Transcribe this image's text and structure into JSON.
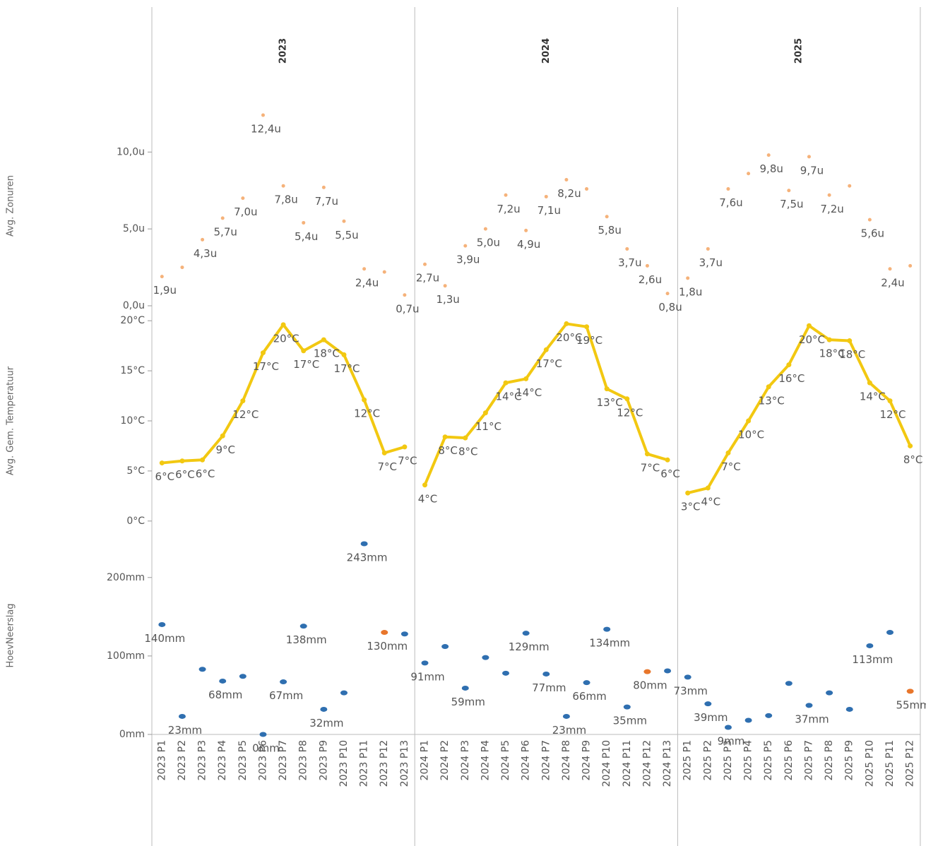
{
  "chart_data": {
    "type": "panels",
    "groups": [
      {
        "name": "2023",
        "categories": [
          "2023 P1",
          "2023 P2",
          "2023 P3",
          "2023 P4",
          "2023 P5",
          "2023 P6",
          "2023 P7",
          "2023 P8",
          "2023 P9",
          "2023 P10",
          "2023 P11",
          "2023 P12",
          "2023 P13"
        ]
      },
      {
        "name": "2024",
        "categories": [
          "2024 P1",
          "2024 P2",
          "2024 P3",
          "2024 P4",
          "2024 P5",
          "2024 P6",
          "2024 P7",
          "2024 P8",
          "2024 P9",
          "2024 P10",
          "2024 P11",
          "2024 P12",
          "2024 P13"
        ]
      },
      {
        "name": "2025",
        "categories": [
          "2025 P1",
          "2025 P2",
          "2025 P3",
          "2025 P4",
          "2025 P5",
          "2025 P6",
          "2025 P7",
          "2025 P8",
          "2025 P9",
          "2025 P10",
          "2025 P11",
          "2025 P12"
        ]
      }
    ],
    "panes": [
      {
        "type": "scatter",
        "ylabel": "Avg. Zonuren",
        "color": "#f5b27a",
        "ylim": [
          0,
          13
        ],
        "yticks": [
          {
            "value": 0,
            "label": "0,0u"
          },
          {
            "value": 5,
            "label": "5,0u"
          },
          {
            "value": 10,
            "label": "10,0u"
          }
        ],
        "values": [
          [
            1.9,
            2.5,
            4.3,
            5.7,
            7.0,
            12.4,
            7.8,
            5.4,
            7.7,
            5.5,
            2.4,
            2.2,
            0.7
          ],
          [
            2.7,
            1.3,
            3.9,
            5.0,
            7.2,
            4.9,
            7.1,
            8.2,
            7.6,
            5.8,
            3.7,
            2.6,
            0.8
          ],
          [
            1.8,
            3.7,
            7.6,
            8.6,
            9.8,
            7.5,
            9.7,
            7.2,
            7.8,
            5.6,
            2.4,
            2.6
          ]
        ],
        "value_labels": [
          [
            "1,9u",
            null,
            "4,3u",
            "5,7u",
            "7,0u",
            "12,4u",
            "7,8u",
            "5,4u",
            "7,7u",
            "5,5u",
            "2,4u",
            null,
            "0,7u"
          ],
          [
            "2,7u",
            "1,3u",
            "3,9u",
            "5,0u",
            "7,2u",
            "4,9u",
            "7,1u",
            "8,2u",
            null,
            "5,8u",
            "3,7u",
            "2,6u",
            "0,8u"
          ],
          [
            "1,8u",
            "3,7u",
            "7,6u",
            null,
            "9,8u",
            "7,5u",
            "9,7u",
            "7,2u",
            null,
            "5,6u",
            "2,4u",
            null
          ]
        ]
      },
      {
        "type": "line",
        "ylabel": "Avg. Gem. Temperatuur",
        "color": "#f2c811",
        "ylim": [
          -1,
          21
        ],
        "yticks": [
          {
            "value": 0,
            "label": "0°C"
          },
          {
            "value": 5,
            "label": "5°C"
          },
          {
            "value": 10,
            "label": "10°C"
          },
          {
            "value": 15,
            "label": "15°C"
          },
          {
            "value": 20,
            "label": "20°C"
          }
        ],
        "values": [
          [
            5.8,
            6.0,
            6.1,
            8.5,
            12.0,
            16.8,
            19.6,
            17.0,
            18.1,
            16.6,
            12.1,
            6.8,
            7.4
          ],
          [
            3.6,
            8.4,
            8.3,
            10.8,
            13.8,
            14.2,
            17.1,
            19.7,
            19.4,
            13.2,
            12.2,
            6.7,
            6.1
          ],
          [
            2.8,
            3.3,
            6.8,
            10.0,
            13.4,
            15.6,
            19.5,
            18.1,
            18.0,
            13.8,
            12.0,
            7.5
          ]
        ],
        "value_labels": [
          [
            "6°C",
            "6°C",
            "6°C",
            "9°C",
            "12°C",
            "17°C",
            "20°C",
            "17°C",
            "18°C",
            "17°C",
            "12°C",
            "7°C",
            "7°C"
          ],
          [
            "4°C",
            "8°C",
            "8°C",
            "11°C",
            "14°C",
            "14°C",
            "17°C",
            "20°C",
            "19°C",
            "13°C",
            "12°C",
            "7°C",
            "6°C"
          ],
          [
            "3°C",
            "4°C",
            "7°C",
            "10°C",
            "13°C",
            "16°C",
            "20°C",
            "18°C",
            "18°C",
            "14°C",
            "12°C",
            "8°C"
          ]
        ]
      },
      {
        "type": "icons",
        "ylabel": "HoevNeerslag",
        "ylim": [
          0,
          252
        ],
        "yticks": [
          {
            "value": 0,
            "label": "0mm"
          },
          {
            "value": 100,
            "label": "100mm"
          },
          {
            "value": 200,
            "label": "200mm"
          }
        ],
        "values": [
          [
            140,
            23,
            83,
            68,
            74,
            0,
            67,
            138,
            32,
            53,
            243,
            130,
            128
          ],
          [
            91,
            112,
            59,
            98,
            78,
            129,
            77,
            23,
            66,
            134,
            35,
            80,
            81
          ],
          [
            73,
            39,
            9,
            18,
            24,
            65,
            37,
            53,
            32,
            113,
            130,
            55
          ]
        ],
        "value_labels": [
          [
            "140mm",
            "23mm",
            null,
            "68mm",
            null,
            "0mm",
            "67mm",
            "138mm",
            "32mm",
            null,
            "243mm",
            "130mm",
            null
          ],
          [
            "91mm",
            null,
            "59mm",
            null,
            null,
            "129mm",
            "77mm",
            "23mm",
            "66mm",
            "134mm",
            "35mm",
            "80mm",
            null
          ],
          [
            "73mm",
            "39mm",
            "9mm",
            null,
            null,
            null,
            "37mm",
            null,
            null,
            "113mm",
            null,
            "55mm"
          ]
        ],
        "colors": [
          [
            "#2f6fb0",
            "#2f6fb0",
            "#2f6fb0",
            "#2f6fb0",
            "#2f6fb0",
            "#2f6fb0",
            "#2f6fb0",
            "#2f6fb0",
            "#2f6fb0",
            "#2f6fb0",
            "#2f6fb0",
            "#e8762b",
            "#2f6fb0"
          ],
          [
            "#2f6fb0",
            "#2f6fb0",
            "#2f6fb0",
            "#2f6fb0",
            "#2f6fb0",
            "#2f6fb0",
            "#2f6fb0",
            "#2f6fb0",
            "#2f6fb0",
            "#2f6fb0",
            "#2f6fb0",
            "#e8762b",
            "#2f6fb0"
          ],
          [
            "#2f6fb0",
            "#2f6fb0",
            "#2f6fb0",
            "#2f6fb0",
            "#2f6fb0",
            "#2f6fb0",
            "#2f6fb0",
            "#2f6fb0",
            "#2f6fb0",
            "#2f6fb0",
            "#2f6fb0",
            "#e8762b"
          ]
        ]
      }
    ]
  }
}
